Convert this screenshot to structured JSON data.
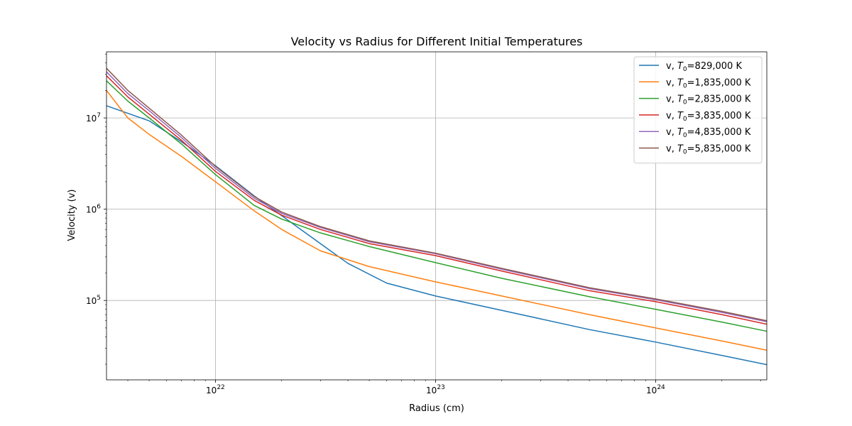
{
  "chart_data": {
    "type": "line",
    "title": "Velocity vs Radius for Different Initial Temperatures",
    "xlabel": "Radius (cm)",
    "ylabel": "Velocity (v)",
    "xscale": "log",
    "yscale": "log",
    "xlim": [
      3.2e+21,
      3.2e+24
    ],
    "ylim": [
      13500.0,
      53000000.0
    ],
    "grid": true,
    "legend_position": "top-right",
    "x_ticks": [
      {
        "value": 1e+22,
        "base": "10",
        "exp": "22"
      },
      {
        "value": 1e+23,
        "base": "10",
        "exp": "23"
      },
      {
        "value": 1e+24,
        "base": "10",
        "exp": "24"
      }
    ],
    "y_ticks": [
      {
        "value": 100000.0,
        "base": "10",
        "exp": "5"
      },
      {
        "value": 1000000.0,
        "base": "10",
        "exp": "6"
      },
      {
        "value": 10000000.0,
        "base": "10",
        "exp": "7"
      }
    ],
    "series": [
      {
        "legend_prefix": "v, ",
        "legend_var": "T",
        "legend_sub": "0",
        "legend_suffix": "=829,000 K",
        "color": "#1f77b4",
        "points": [
          [
            3.2e+21,
            13600000
          ],
          [
            5e+21,
            9300000
          ],
          [
            7e+21,
            5500000
          ],
          [
            1e+22,
            3000000
          ],
          [
            1.5e+22,
            1400000
          ],
          [
            2e+22,
            850000
          ],
          [
            3e+22,
            420000
          ],
          [
            4e+22,
            255000
          ],
          [
            6e+22,
            155000
          ],
          [
            1e+23,
            112000
          ],
          [
            2e+23,
            78000
          ],
          [
            5e+23,
            48000
          ],
          [
            1e+24,
            35000
          ],
          [
            2e+24,
            25000
          ],
          [
            3.2e+24,
            19800
          ]
        ]
      },
      {
        "legend_prefix": "v, ",
        "legend_var": "T",
        "legend_sub": "0",
        "legend_suffix": "=1,835,000 K",
        "color": "#ff7f0e",
        "points": [
          [
            3.2e+21,
            20000000
          ],
          [
            4e+21,
            10000000
          ],
          [
            5e+21,
            6600000
          ],
          [
            7e+21,
            3800000
          ],
          [
            1e+22,
            2000000
          ],
          [
            1.5e+22,
            960000
          ],
          [
            2e+22,
            600000
          ],
          [
            3e+22,
            350000
          ],
          [
            5e+22,
            235000
          ],
          [
            1e+23,
            160000
          ],
          [
            2e+23,
            112000
          ],
          [
            5e+23,
            70000
          ],
          [
            1e+24,
            50000
          ],
          [
            2e+24,
            36000
          ],
          [
            3.2e+24,
            28500
          ]
        ]
      },
      {
        "legend_prefix": "v, ",
        "legend_var": "T",
        "legend_sub": "0",
        "legend_suffix": "=2,835,000 K",
        "color": "#2ca02c",
        "points": [
          [
            3.2e+21,
            25500000
          ],
          [
            4e+21,
            15300000
          ],
          [
            5e+21,
            10000000
          ],
          [
            7e+21,
            5200000
          ],
          [
            1e+22,
            2400000
          ],
          [
            1.5e+22,
            1100000
          ],
          [
            2e+22,
            780000
          ],
          [
            3e+22,
            550000
          ],
          [
            5e+22,
            390000
          ],
          [
            1e+23,
            260000
          ],
          [
            2e+23,
            175000
          ],
          [
            5e+23,
            110000
          ],
          [
            1e+24,
            80000
          ],
          [
            2e+24,
            58000
          ],
          [
            3.2e+24,
            46000
          ]
        ]
      },
      {
        "legend_prefix": "v, ",
        "legend_var": "T",
        "legend_sub": "0",
        "legend_suffix": "=3,835,000 K",
        "color": "#d62728",
        "points": [
          [
            3.2e+21,
            29000000
          ],
          [
            4e+21,
            17000000
          ],
          [
            5e+21,
            11000000
          ],
          [
            7e+21,
            5700000
          ],
          [
            1e+22,
            2600000
          ],
          [
            1.5e+22,
            1250000
          ],
          [
            2e+22,
            860000
          ],
          [
            3e+22,
            600000
          ],
          [
            5e+22,
            420000
          ],
          [
            1e+23,
            310000
          ],
          [
            2e+23,
            210000
          ],
          [
            5e+23,
            128000
          ],
          [
            1e+24,
            97000
          ],
          [
            2e+24,
            70000
          ],
          [
            3.2e+24,
            55000
          ]
        ]
      },
      {
        "legend_prefix": "v, ",
        "legend_var": "T",
        "legend_sub": "0",
        "legend_suffix": "=4,835,000 K",
        "color": "#9467bd",
        "points": [
          [
            3.2e+21,
            32000000
          ],
          [
            4e+21,
            18500000
          ],
          [
            5e+21,
            12000000
          ],
          [
            7e+21,
            6100000
          ],
          [
            1e+22,
            2800000
          ],
          [
            1.5e+22,
            1320000
          ],
          [
            2e+22,
            900000
          ],
          [
            3e+22,
            630000
          ],
          [
            5e+22,
            440000
          ],
          [
            1e+23,
            325000
          ],
          [
            2e+23,
            220000
          ],
          [
            5e+23,
            135000
          ],
          [
            1e+24,
            102000
          ],
          [
            2e+24,
            74000
          ],
          [
            3.2e+24,
            58500
          ]
        ]
      },
      {
        "legend_prefix": "v, ",
        "legend_var": "T",
        "legend_sub": "0",
        "legend_suffix": "=5,835,000 K",
        "color": "#8c564b",
        "points": [
          [
            3.2e+21,
            35000000
          ],
          [
            4e+21,
            20000000
          ],
          [
            5e+21,
            12800000
          ],
          [
            7e+21,
            6500000
          ],
          [
            1e+22,
            2950000
          ],
          [
            1.5e+22,
            1380000
          ],
          [
            2e+22,
            930000
          ],
          [
            3e+22,
            645000
          ],
          [
            5e+22,
            450000
          ],
          [
            1e+23,
            330000
          ],
          [
            2e+23,
            225000
          ],
          [
            5e+23,
            138000
          ],
          [
            1e+24,
            104000
          ],
          [
            2e+24,
            76000
          ],
          [
            3.2e+24,
            60000
          ]
        ]
      }
    ]
  }
}
